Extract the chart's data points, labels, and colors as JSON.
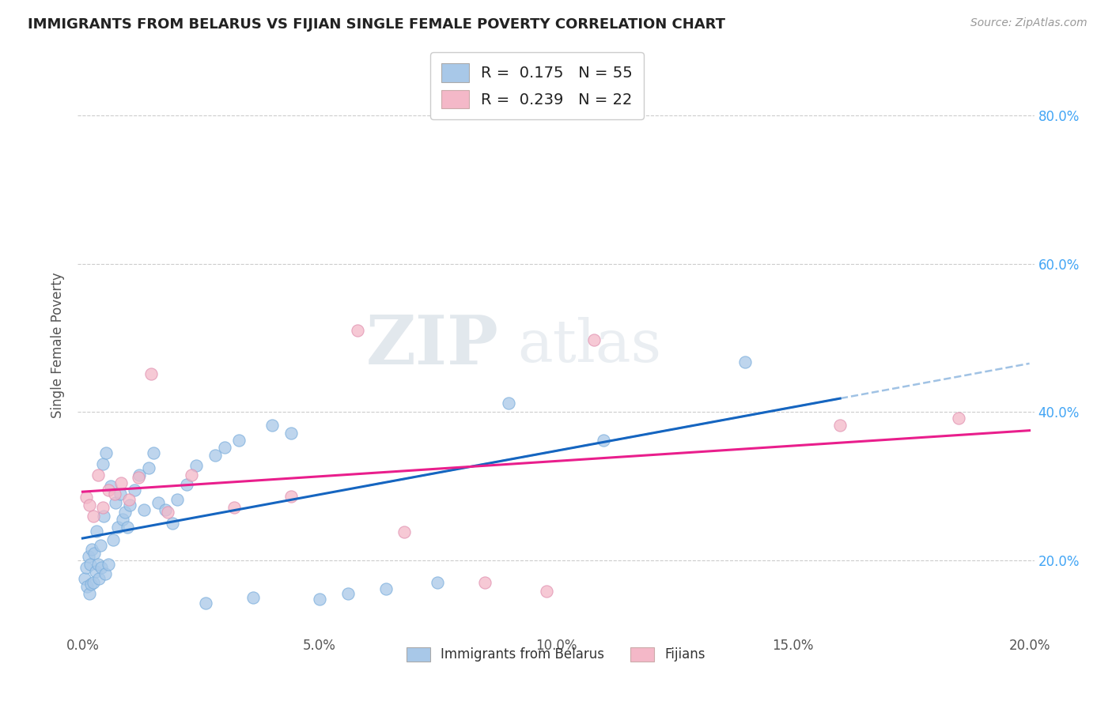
{
  "title": "IMMIGRANTS FROM BELARUS VS FIJIAN SINGLE FEMALE POVERTY CORRELATION CHART",
  "source": "Source: ZipAtlas.com",
  "ylabel": "Single Female Poverty",
  "legend_label1": "Immigrants from Belarus",
  "legend_label2": "Fijians",
  "R1": 0.175,
  "N1": 55,
  "R2": 0.239,
  "N2": 22,
  "xlim": [
    -0.001,
    0.201
  ],
  "ylim": [
    0.1,
    0.88
  ],
  "xticks": [
    0.0,
    0.05,
    0.1,
    0.15,
    0.2
  ],
  "yticks": [
    0.2,
    0.4,
    0.6,
    0.8
  ],
  "color_blue": "#a8c8e8",
  "color_pink": "#f4b8c8",
  "color_blue_trend": "#1565C0",
  "color_pink_trend": "#e91e8c",
  "color_dashed": "#90b8e0",
  "watermark_zip": "ZIP",
  "watermark_atlas": "atlas",
  "blue_scatter_x": [
    0.0005,
    0.0008,
    0.001,
    0.0012,
    0.0014,
    0.0016,
    0.0018,
    0.002,
    0.0022,
    0.0025,
    0.0028,
    0.003,
    0.0032,
    0.0035,
    0.0038,
    0.004,
    0.0042,
    0.0045,
    0.0048,
    0.005,
    0.0055,
    0.006,
    0.0065,
    0.007,
    0.0075,
    0.008,
    0.0085,
    0.009,
    0.0095,
    0.01,
    0.011,
    0.012,
    0.013,
    0.014,
    0.015,
    0.016,
    0.0175,
    0.019,
    0.02,
    0.022,
    0.024,
    0.026,
    0.028,
    0.03,
    0.033,
    0.036,
    0.04,
    0.044,
    0.05,
    0.056,
    0.064,
    0.075,
    0.09,
    0.11,
    0.14
  ],
  "blue_scatter_y": [
    0.175,
    0.19,
    0.165,
    0.205,
    0.155,
    0.195,
    0.168,
    0.215,
    0.17,
    0.21,
    0.185,
    0.24,
    0.195,
    0.175,
    0.22,
    0.19,
    0.33,
    0.26,
    0.182,
    0.345,
    0.195,
    0.3,
    0.228,
    0.278,
    0.245,
    0.29,
    0.255,
    0.265,
    0.245,
    0.275,
    0.295,
    0.315,
    0.268,
    0.325,
    0.345,
    0.278,
    0.268,
    0.25,
    0.282,
    0.302,
    0.328,
    0.142,
    0.342,
    0.352,
    0.362,
    0.15,
    0.382,
    0.372,
    0.148,
    0.155,
    0.162,
    0.17,
    0.412,
    0.362,
    0.468
  ],
  "pink_scatter_x": [
    0.0008,
    0.0015,
    0.0022,
    0.0032,
    0.0042,
    0.0055,
    0.0068,
    0.0082,
    0.0098,
    0.0118,
    0.0145,
    0.018,
    0.023,
    0.032,
    0.044,
    0.058,
    0.068,
    0.085,
    0.098,
    0.108,
    0.16,
    0.185
  ],
  "pink_scatter_y": [
    0.285,
    0.275,
    0.26,
    0.315,
    0.272,
    0.295,
    0.29,
    0.305,
    0.282,
    0.312,
    0.452,
    0.265,
    0.315,
    0.272,
    0.286,
    0.51,
    0.238,
    0.17,
    0.158,
    0.498,
    0.382,
    0.392
  ]
}
